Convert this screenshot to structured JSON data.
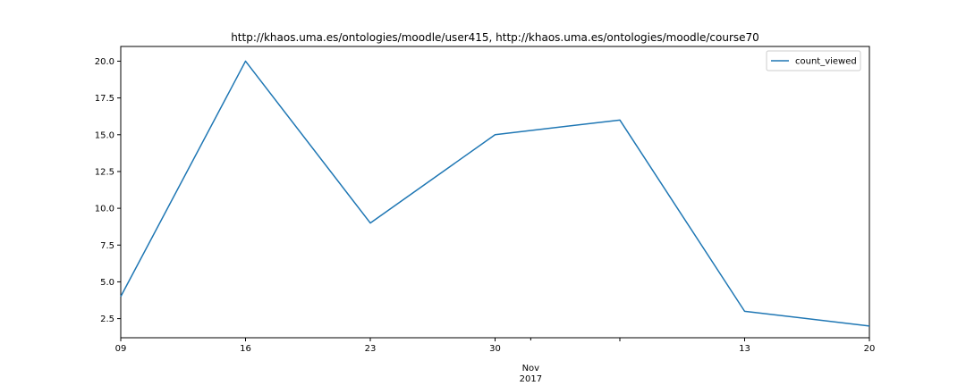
{
  "chart_data": {
    "type": "line",
    "title": "http://khaos.uma.es/ontologies/moodle/user415, http://khaos.uma.es/ontologies/moodle/course70",
    "xlabel": "",
    "ylabel": "",
    "x": [
      "2017-10-09",
      "2017-10-16",
      "2017-10-23",
      "2017-10-30",
      "2017-11-06",
      "2017-11-13",
      "2017-11-20"
    ],
    "series": [
      {
        "name": "count_viewed",
        "values": [
          4,
          20,
          9,
          15,
          16,
          3,
          2
        ],
        "color": "#1f77b4"
      }
    ],
    "xlim": [
      "2017-10-09",
      "2017-11-20"
    ],
    "ylim": [
      1.2,
      21.0
    ],
    "x_ticks": [
      {
        "x": "2017-10-09",
        "label": "09"
      },
      {
        "x": "2017-10-16",
        "label": "16"
      },
      {
        "x": "2017-10-23",
        "label": "23"
      },
      {
        "x": "2017-10-30",
        "label": "30"
      },
      {
        "x": "2017-11-06",
        "label": ""
      },
      {
        "x": "2017-11-13",
        "label": "13"
      },
      {
        "x": "2017-11-20",
        "label": "20"
      }
    ],
    "x_major_label": {
      "x": "2017-11-01",
      "month": "Nov",
      "year": "2017"
    },
    "y_ticks": [
      2.5,
      5.0,
      7.5,
      10.0,
      12.5,
      15.0,
      17.5,
      20.0
    ],
    "y_tick_labels": [
      "2.5",
      "5.0",
      "7.5",
      "10.0",
      "12.5",
      "15.0",
      "17.5",
      "20.0"
    ],
    "grid": false,
    "legend_position": "top-right"
  }
}
